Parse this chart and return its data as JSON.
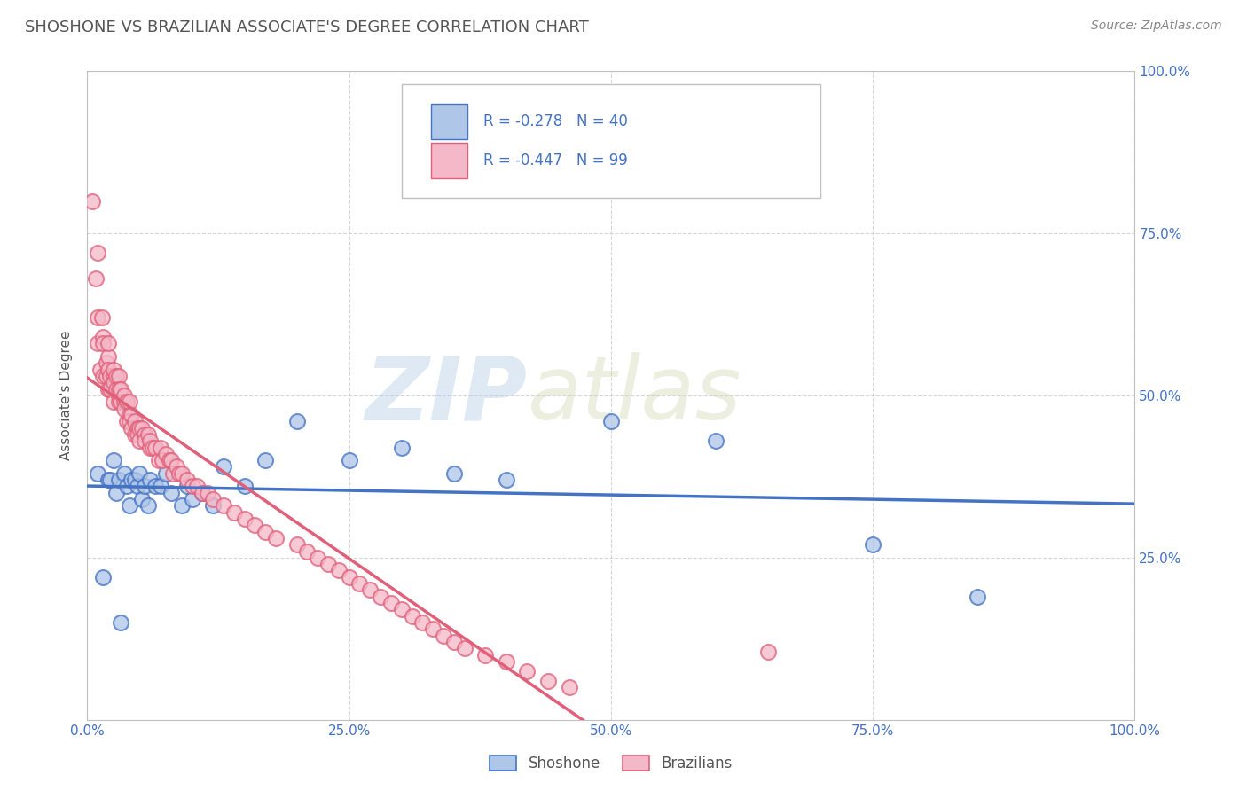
{
  "title": "SHOSHONE VS BRAZILIAN ASSOCIATE'S DEGREE CORRELATION CHART",
  "source_text": "Source: ZipAtlas.com",
  "ylabel": "Associate's Degree",
  "watermark_zip": "ZIP",
  "watermark_atlas": "atlas",
  "xlim": [
    0.0,
    1.0
  ],
  "ylim": [
    0.0,
    1.0
  ],
  "xtick_labels": [
    "0.0%",
    "25.0%",
    "50.0%",
    "75.0%",
    "100.0%"
  ],
  "xtick_positions": [
    0.0,
    0.25,
    0.5,
    0.75,
    1.0
  ],
  "ytick_labels": [
    "25.0%",
    "50.0%",
    "75.0%",
    "100.0%"
  ],
  "ytick_positions": [
    0.25,
    0.5,
    0.75,
    1.0
  ],
  "shoshone_R": -0.278,
  "shoshone_N": 40,
  "brazilian_R": -0.447,
  "brazilian_N": 99,
  "shoshone_color": "#aec6e8",
  "shoshone_line_color": "#4472c4",
  "brazilian_color": "#f4b8c8",
  "brazilian_line_color": "#e0607a",
  "legend_text_color": "#4472c4",
  "title_color": "#555555",
  "source_color": "#888888",
  "background_color": "#ffffff",
  "grid_color": "#cccccc",
  "shoshone_x": [
    0.01,
    0.015,
    0.02,
    0.022,
    0.025,
    0.028,
    0.03,
    0.032,
    0.035,
    0.038,
    0.04,
    0.042,
    0.045,
    0.048,
    0.05,
    0.052,
    0.055,
    0.058,
    0.06,
    0.065,
    0.07,
    0.075,
    0.08,
    0.09,
    0.095,
    0.1,
    0.11,
    0.12,
    0.13,
    0.15,
    0.17,
    0.2,
    0.25,
    0.3,
    0.35,
    0.4,
    0.5,
    0.6,
    0.75,
    0.85
  ],
  "shoshone_y": [
    0.38,
    0.22,
    0.37,
    0.37,
    0.4,
    0.35,
    0.37,
    0.15,
    0.38,
    0.36,
    0.33,
    0.37,
    0.37,
    0.36,
    0.38,
    0.34,
    0.36,
    0.33,
    0.37,
    0.36,
    0.36,
    0.38,
    0.35,
    0.33,
    0.36,
    0.34,
    0.35,
    0.33,
    0.39,
    0.36,
    0.4,
    0.46,
    0.4,
    0.42,
    0.38,
    0.37,
    0.46,
    0.43,
    0.27,
    0.19
  ],
  "brazilian_x": [
    0.005,
    0.008,
    0.01,
    0.01,
    0.01,
    0.012,
    0.014,
    0.015,
    0.015,
    0.015,
    0.018,
    0.018,
    0.02,
    0.02,
    0.02,
    0.02,
    0.022,
    0.022,
    0.025,
    0.025,
    0.025,
    0.025,
    0.028,
    0.028,
    0.03,
    0.03,
    0.03,
    0.03,
    0.032,
    0.032,
    0.035,
    0.035,
    0.035,
    0.038,
    0.038,
    0.04,
    0.04,
    0.04,
    0.042,
    0.042,
    0.045,
    0.045,
    0.048,
    0.048,
    0.05,
    0.05,
    0.052,
    0.055,
    0.055,
    0.058,
    0.06,
    0.06,
    0.062,
    0.065,
    0.068,
    0.07,
    0.072,
    0.075,
    0.078,
    0.08,
    0.082,
    0.085,
    0.088,
    0.09,
    0.095,
    0.1,
    0.105,
    0.11,
    0.115,
    0.12,
    0.13,
    0.14,
    0.15,
    0.16,
    0.17,
    0.18,
    0.2,
    0.21,
    0.22,
    0.23,
    0.24,
    0.25,
    0.26,
    0.27,
    0.28,
    0.29,
    0.3,
    0.31,
    0.32,
    0.33,
    0.34,
    0.35,
    0.36,
    0.38,
    0.4,
    0.42,
    0.44,
    0.46,
    0.65
  ],
  "brazilian_y": [
    0.8,
    0.68,
    0.58,
    0.62,
    0.72,
    0.54,
    0.62,
    0.59,
    0.53,
    0.58,
    0.53,
    0.55,
    0.51,
    0.56,
    0.54,
    0.58,
    0.53,
    0.51,
    0.53,
    0.52,
    0.49,
    0.54,
    0.51,
    0.53,
    0.53,
    0.5,
    0.51,
    0.49,
    0.49,
    0.51,
    0.49,
    0.5,
    0.48,
    0.49,
    0.46,
    0.49,
    0.47,
    0.46,
    0.47,
    0.45,
    0.46,
    0.44,
    0.45,
    0.44,
    0.45,
    0.43,
    0.45,
    0.44,
    0.43,
    0.44,
    0.42,
    0.43,
    0.42,
    0.42,
    0.4,
    0.42,
    0.4,
    0.41,
    0.4,
    0.4,
    0.38,
    0.39,
    0.38,
    0.38,
    0.37,
    0.36,
    0.36,
    0.35,
    0.35,
    0.34,
    0.33,
    0.32,
    0.31,
    0.3,
    0.29,
    0.28,
    0.27,
    0.26,
    0.25,
    0.24,
    0.23,
    0.22,
    0.21,
    0.2,
    0.19,
    0.18,
    0.17,
    0.16,
    0.15,
    0.14,
    0.13,
    0.12,
    0.11,
    0.1,
    0.09,
    0.075,
    0.06,
    0.05,
    0.105
  ]
}
